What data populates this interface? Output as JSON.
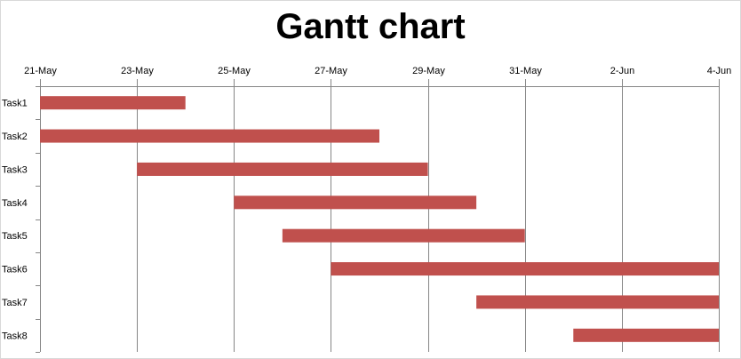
{
  "chart_data": {
    "type": "bar",
    "orientation": "horizontal",
    "style": "gantt",
    "title": "Gantt chart",
    "x_axis_position": "top",
    "xlim": [
      "2012-05-21",
      "2012-06-04"
    ],
    "x_ticks": [
      "21-May",
      "23-May",
      "25-May",
      "27-May",
      "29-May",
      "31-May",
      "2-Jun",
      "4-Jun"
    ],
    "x_tick_dates": [
      "2012-05-21",
      "2012-05-23",
      "2012-05-25",
      "2012-05-27",
      "2012-05-29",
      "2012-05-31",
      "2012-06-02",
      "2012-06-04"
    ],
    "vertical_gridlines": true,
    "categories": [
      "Task1",
      "Task2",
      "Task3",
      "Task4",
      "Task5",
      "Task6",
      "Task7",
      "Task8"
    ],
    "tasks": [
      {
        "name": "Task1",
        "start": "2012-05-21",
        "end": "2012-05-24"
      },
      {
        "name": "Task2",
        "start": "2012-05-21",
        "end": "2012-05-28"
      },
      {
        "name": "Task3",
        "start": "2012-05-23",
        "end": "2012-05-29"
      },
      {
        "name": "Task4",
        "start": "2012-05-25",
        "end": "2012-05-30"
      },
      {
        "name": "Task5",
        "start": "2012-05-26",
        "end": "2012-05-31"
      },
      {
        "name": "Task6",
        "start": "2012-05-27",
        "end": "2012-06-04"
      },
      {
        "name": "Task7",
        "start": "2012-05-30",
        "end": "2012-06-04"
      },
      {
        "name": "Task8",
        "start": "2012-06-01",
        "end": "2012-06-04"
      }
    ],
    "bar_color": "#c0504d",
    "grid_color": "#868686"
  }
}
